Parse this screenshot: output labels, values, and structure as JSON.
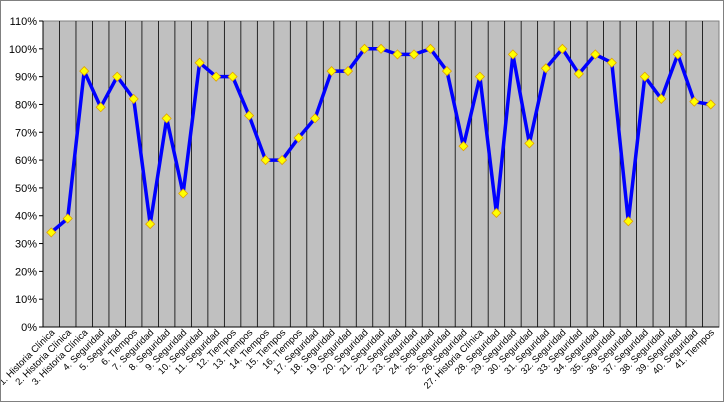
{
  "chart_data": {
    "type": "line",
    "title": "",
    "xlabel": "",
    "ylabel": "",
    "ylim": [
      0,
      110
    ],
    "ytick_values": [
      0,
      10,
      20,
      30,
      40,
      50,
      60,
      70,
      80,
      90,
      100,
      110
    ],
    "ytick_labels": [
      "0%",
      "10%",
      "20%",
      "30%",
      "40%",
      "50%",
      "60%",
      "70%",
      "80%",
      "90%",
      "100%",
      "110%"
    ],
    "grid": "vertical",
    "legend": "none",
    "categories": [
      "1. Historia Clínica",
      "2. Historia Clínica",
      "3. Historia Clínica",
      "4. Seguridad",
      "5. Seguridad",
      "6. Tiempos",
      "7. Seguridad",
      "8. Seguridad",
      "9. Seguridad",
      "10. Seguridad",
      "11. Seguridad",
      "12. Tiempos",
      "13. Tiempos",
      "14. Tiempos",
      "15. Tiempos",
      "16. Tiempos",
      "17. Seguridad",
      "18. Seguridad",
      "19. Seguridad",
      "20. Seguridad",
      "21. Seguridad",
      "22. Seguridad",
      "23. Seguridad",
      "24. Seguridad",
      "25. Seguridad",
      "26. Seguridad",
      "27. Historia Clínica",
      "28. Seguridad",
      "29. Seguridad",
      "30. Seguridad",
      "31. Seguridad",
      "32. Seguridad",
      "33. Seguridad",
      "34. Seguridad",
      "35. Seguridad",
      "36. Seguridad",
      "37. Seguridad",
      "38. Seguridad",
      "39. Seguridad",
      "40. Seguridad",
      "41. Tiempos"
    ],
    "series": [
      {
        "values": [
          34,
          39,
          92,
          79,
          90,
          82,
          37,
          75,
          48,
          95,
          90,
          90,
          76,
          60,
          60,
          68,
          75,
          92,
          92,
          100,
          100,
          98,
          98,
          100,
          92,
          65,
          90,
          41,
          98,
          66,
          93,
          100,
          91,
          98,
          95,
          38,
          90,
          82,
          98,
          81,
          80
        ],
        "line_color": "#0000ff",
        "marker_color": "#ffff00",
        "marker_edge": "#e0a000"
      }
    ],
    "colors": {
      "plot_background": "#c0c0c0",
      "gridline": "#000000",
      "axis": "#808080"
    }
  }
}
